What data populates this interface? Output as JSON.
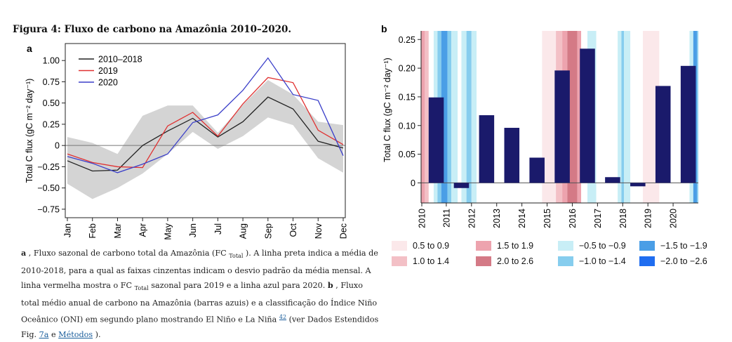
{
  "figure_title": "Figura 4: Fluxo de carbono na Amazônia 2010–2020.",
  "chart_data": [
    {
      "panel": "a",
      "type": "line",
      "ylabel": "Total C flux (gC m⁻² day⁻¹)",
      "xlabel": "",
      "categories": [
        "Jan",
        "Feb",
        "Mar",
        "Apr",
        "May",
        "Jun",
        "Jul",
        "Aug",
        "Sep",
        "Oct",
        "Nov",
        "Dec"
      ],
      "ylim": [
        -0.85,
        1.2
      ],
      "yticks": [
        1.0,
        0.75,
        0.5,
        0.25,
        0,
        -0.25,
        -0.5,
        -0.75
      ],
      "ytick_labels": [
        "1.00",
        "0.75",
        "0.50",
        "0.25",
        "0",
        "−0.25",
        "−0.50",
        "−0.75"
      ],
      "band": {
        "upper": [
          0.1,
          0.03,
          -0.1,
          0.35,
          0.47,
          0.47,
          0.15,
          0.48,
          0.77,
          0.6,
          0.28,
          0.24
        ],
        "lower": [
          -0.45,
          -0.63,
          -0.5,
          -0.33,
          -0.1,
          0.16,
          -0.04,
          0.11,
          0.33,
          0.24,
          -0.15,
          -0.32
        ]
      },
      "series": [
        {
          "name": "2010–2018",
          "color": "#222222",
          "values": [
            -0.18,
            -0.3,
            -0.29,
            0.0,
            0.17,
            0.32,
            0.1,
            0.28,
            0.57,
            0.43,
            0.05,
            -0.03
          ]
        },
        {
          "name": "2019",
          "color": "#e03131",
          "values": [
            -0.1,
            -0.2,
            -0.25,
            -0.26,
            0.23,
            0.39,
            0.11,
            0.49,
            0.8,
            0.74,
            0.18,
            0.01
          ]
        },
        {
          "name": "2020",
          "color": "#3b3fc9",
          "values": [
            -0.13,
            -0.21,
            -0.32,
            -0.22,
            -0.1,
            0.27,
            0.36,
            0.65,
            1.03,
            0.6,
            0.53,
            -0.12
          ]
        }
      ],
      "legend_position": "top-left"
    },
    {
      "panel": "b",
      "type": "bar",
      "ylabel": "Total C flux (gC m⁻² day⁻¹)",
      "xlabel": "",
      "x_years": [
        "2010",
        "2011",
        "2012",
        "2013",
        "2014",
        "2015",
        "2016",
        "2017",
        "2018",
        "2019",
        "2020"
      ],
      "xlim": [
        2010,
        2021
      ],
      "ylim": [
        -0.035,
        0.265
      ],
      "yticks": [
        0.25,
        0.2,
        0.15,
        0.1,
        0.05,
        0
      ],
      "ytick_labels": [
        "0.25",
        "0.20",
        "0.15",
        "0.10",
        "0.05",
        "0"
      ],
      "values": [
        0.149,
        -0.009,
        0.118,
        0.096,
        0.044,
        0.196,
        0.234,
        0.01,
        -0.006,
        0.169,
        0.204
      ],
      "bar_color": "#1a1a6b",
      "oni_background": [
        {
          "start": 2010.0,
          "end": 2010.15,
          "class": "el_1.5"
        },
        {
          "start": 2010.15,
          "end": 2010.3,
          "class": "el_1.0"
        },
        {
          "start": 2010.5,
          "end": 2010.65,
          "class": "la_0.5"
        },
        {
          "start": 2010.65,
          "end": 2010.8,
          "class": "la_1.0"
        },
        {
          "start": 2010.8,
          "end": 2011.05,
          "class": "la_1.5"
        },
        {
          "start": 2011.05,
          "end": 2011.2,
          "class": "la_1.0"
        },
        {
          "start": 2011.2,
          "end": 2011.45,
          "class": "la_0.5"
        },
        {
          "start": 2011.6,
          "end": 2011.8,
          "class": "la_0.5"
        },
        {
          "start": 2011.8,
          "end": 2012.0,
          "class": "la_1.0"
        },
        {
          "start": 2012.0,
          "end": 2012.2,
          "class": "la_0.5"
        },
        {
          "start": 2014.8,
          "end": 2015.35,
          "class": "el_0.5"
        },
        {
          "start": 2015.35,
          "end": 2015.6,
          "class": "el_1.0"
        },
        {
          "start": 2015.6,
          "end": 2015.8,
          "class": "el_1.5"
        },
        {
          "start": 2015.8,
          "end": 2016.2,
          "class": "el_2.0"
        },
        {
          "start": 2016.2,
          "end": 2016.35,
          "class": "el_1.5"
        },
        {
          "start": 2016.6,
          "end": 2016.95,
          "class": "la_0.5"
        },
        {
          "start": 2017.8,
          "end": 2017.95,
          "class": "la_0.5"
        },
        {
          "start": 2017.95,
          "end": 2018.05,
          "class": "la_1.0"
        },
        {
          "start": 2018.05,
          "end": 2018.3,
          "class": "la_0.5"
        },
        {
          "start": 2018.8,
          "end": 2019.45,
          "class": "el_0.5"
        },
        {
          "start": 2020.65,
          "end": 2020.8,
          "class": "la_0.5"
        },
        {
          "start": 2020.8,
          "end": 2020.95,
          "class": "la_1.5"
        },
        {
          "start": 2020.95,
          "end": 2021.0,
          "class": "la_1.0"
        }
      ],
      "legend": [
        {
          "label": "0.5 to 0.9",
          "color": "#fbe8ea"
        },
        {
          "label": "1.0 to 1.4",
          "color": "#f3c0c6"
        },
        {
          "label": "1.5 to 1.9",
          "color": "#eda3ae"
        },
        {
          "label": "2.0 to 2.6",
          "color": "#d47a86"
        },
        {
          "label": "−0.5 to −0.9",
          "color": "#c8eef6"
        },
        {
          "label": "−1.0 to −1.4",
          "color": "#86cdee"
        },
        {
          "label": "−1.5 to −1.9",
          "color": "#4a9ee6"
        },
        {
          "label": "−2.0 to −2.6",
          "color": "#1f6df0"
        }
      ]
    }
  ],
  "caption": {
    "panel_a_letter": "a",
    "part1": " , Fluxo sazonal de carbono total da Amazônia (FC ",
    "sub_total": "Total",
    "part2": " ). A linha preta indica a média de 2010-2018, para a qual as faixas cinzentas indicam o desvio padrão da média mensal. A linha vermelha mostra o FC ",
    "part3": " sazonal para 2019 e a linha azul para 2020. ",
    "panel_b_letter": "b",
    "part4": " , Fluxo total médio anual de carbono na Amazônia (barras azuis) e a classificação do Índice Niño Oceânico (ONI) em segundo plano mostrando El Niño e La Niña ",
    "ref": "42",
    "part5": " (ver Dados Estendidos Fig. ",
    "link1": "7a",
    "part6": " e ",
    "link2": "Métodos",
    "part7": " )."
  }
}
